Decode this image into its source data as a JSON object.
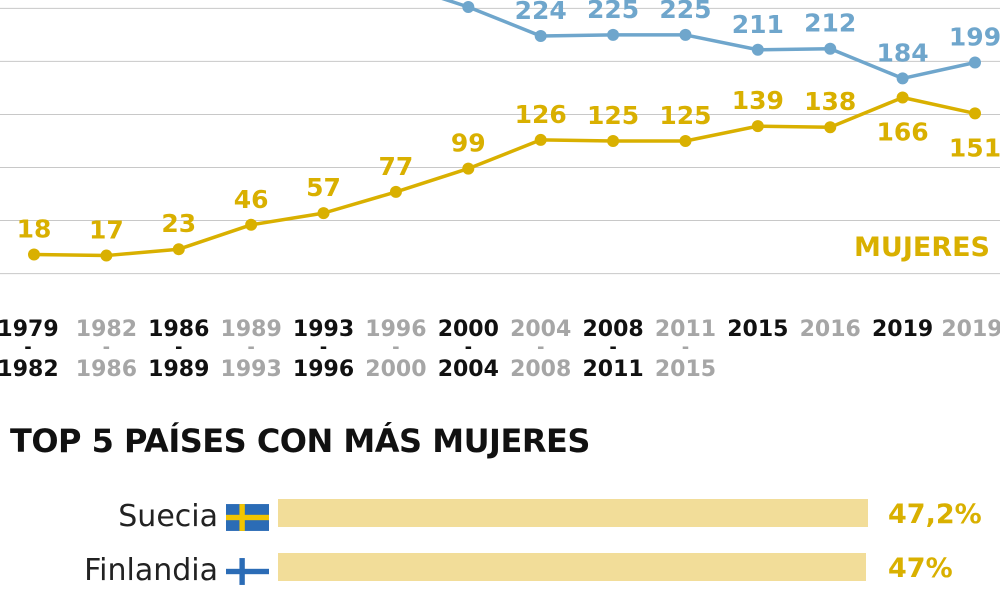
{
  "chart_data": [
    {
      "type": "line",
      "categories": [
        [
          "1979",
          "1982"
        ],
        [
          "1982",
          "1986"
        ],
        [
          "1986",
          "1989"
        ],
        [
          "1989",
          "1993"
        ],
        [
          "1993",
          "1996"
        ],
        [
          "1996",
          "2000"
        ],
        [
          "2000",
          "2004"
        ],
        [
          "2004",
          "2008"
        ],
        [
          "2008",
          "2011"
        ],
        [
          "2011",
          "2015"
        ],
        [
          "2015",
          ""
        ],
        [
          "2016",
          ""
        ],
        [
          "2019",
          ""
        ],
        [
          "2019",
          ""
        ]
      ],
      "category_emphasis": [
        true,
        false,
        true,
        false,
        true,
        false,
        true,
        false,
        true,
        false,
        true,
        false,
        true,
        false
      ],
      "series": [
        {
          "name": "MUJERES",
          "color": "#d9b000",
          "values": [
            18,
            17,
            23,
            46,
            57,
            77,
            99,
            126,
            125,
            125,
            139,
            138,
            166,
            151
          ]
        },
        {
          "color": "#6fa6cc",
          "values": [
            null,
            null,
            null,
            null,
            null,
            null,
            null,
            224,
            225,
            225,
            211,
            212,
            184,
            199
          ],
          "visible_partial": true
        }
      ],
      "ylim": [
        0,
        350
      ],
      "grid": true,
      "grid_color": "#c8c8c8"
    },
    {
      "type": "bar",
      "title": "TOP 5 PAÍSES CON MÁS MUJERES",
      "categories": [
        "Suecia",
        "Finlandia"
      ],
      "values": [
        47.2,
        47
      ],
      "value_labels": [
        "47,2%",
        "47%"
      ],
      "flags": [
        "sweden-flag",
        "finland-flag"
      ],
      "bar_color": "#f2dd99",
      "label_color": "#d9b000",
      "xlim": [
        0,
        47.2
      ]
    }
  ]
}
